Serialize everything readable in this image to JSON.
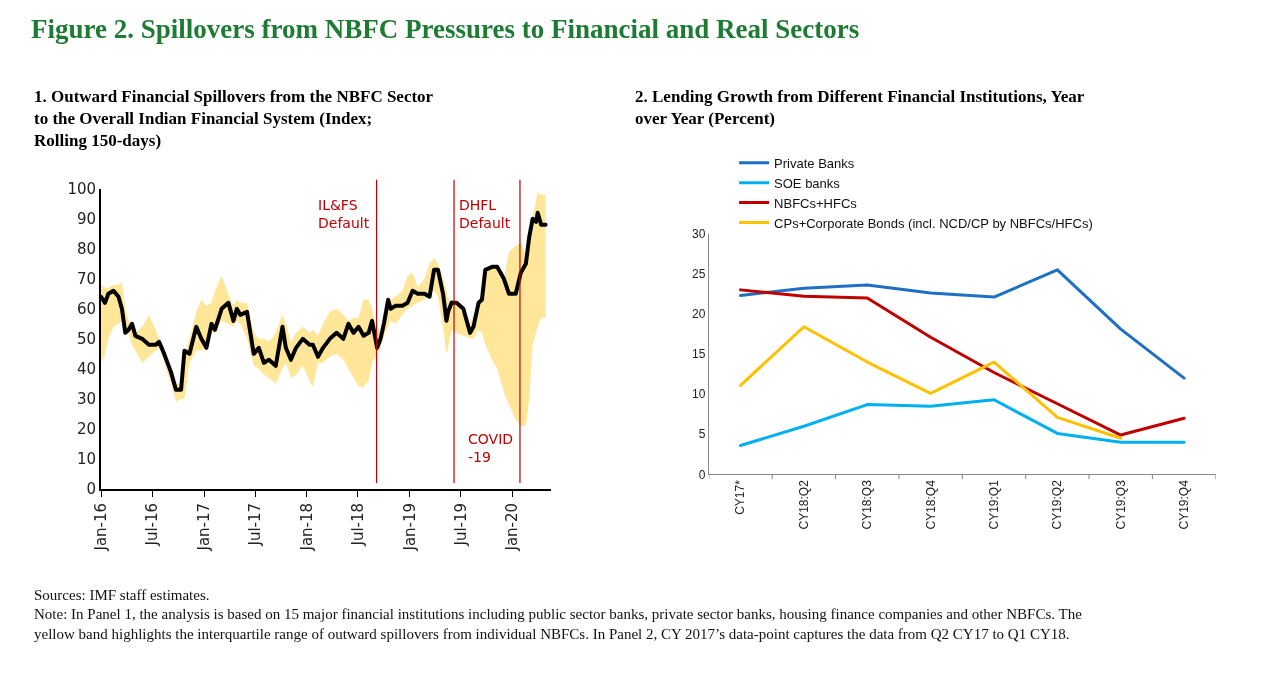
{
  "chart_data": [
    {
      "type": "line",
      "title": "1. Outward Financial Spillovers from the NBFC Sector to the Overall Indian Financial System (Index; Rolling 150-days)",
      "annotations": [
        "Figure 2. Spillovers from NBFC Pressures to Financial and Real Sectors"
      ],
      "xlim": [
        "2016-01-01",
        "2020-05-17"
      ],
      "xticks": [
        {
          "value": "2016-01-01",
          "label": "Jan-16"
        },
        {
          "value": "2016-07-01",
          "label": "Jul-16"
        },
        {
          "value": "2017-01-01",
          "label": "Jan-17"
        },
        {
          "value": "2017-07-01",
          "label": "Jul-17"
        },
        {
          "value": "2018-01-01",
          "label": "Jan-18"
        },
        {
          "value": "2018-07-01",
          "label": "Jul-18"
        },
        {
          "value": "2019-01-01",
          "label": "Jan-19"
        },
        {
          "value": "2019-07-01",
          "label": "Jul-19"
        },
        {
          "value": "2020-01-01",
          "label": "Jan-20"
        }
      ],
      "ylim": [
        0,
        100
      ],
      "yticks": [
        0,
        10,
        20,
        30,
        40,
        50,
        60,
        70,
        80,
        90,
        100
      ],
      "x": [
        "2016-01-01",
        "2016-01-15",
        "2016-01-27",
        "2016-02-14",
        "2016-03-03",
        "2016-03-15",
        "2016-03-27",
        "2016-04-08",
        "2016-04-20",
        "2016-05-02",
        "2016-05-26",
        "2016-06-19",
        "2016-07-13",
        "2016-07-25",
        "2016-08-12",
        "2016-09-05",
        "2016-09-23",
        "2016-10-11",
        "2016-10-23",
        "2016-11-10",
        "2016-12-04",
        "2016-12-22",
        "2017-01-09",
        "2017-01-27",
        "2017-02-08",
        "2017-03-04",
        "2017-03-28",
        "2017-04-15",
        "2017-04-27",
        "2017-05-09",
        "2017-06-02",
        "2017-06-26",
        "2017-07-14",
        "2017-08-01",
        "2017-08-19",
        "2017-09-12",
        "2017-10-06",
        "2017-10-18",
        "2017-11-05",
        "2017-11-23",
        "2017-12-17",
        "2018-01-10",
        "2018-01-22",
        "2018-02-09",
        "2018-02-27",
        "2018-03-23",
        "2018-04-16",
        "2018-05-10",
        "2018-05-28",
        "2018-06-15",
        "2018-07-03",
        "2018-07-21",
        "2018-08-08",
        "2018-08-20",
        "2018-09-07",
        "2018-09-19",
        "2018-10-01",
        "2018-10-16",
        "2018-10-25",
        "2018-11-12",
        "2018-12-06",
        "2018-12-24",
        "2019-01-11",
        "2019-01-29",
        "2019-02-22",
        "2019-03-12",
        "2019-03-28",
        "2019-04-11",
        "2019-04-29",
        "2019-05-11",
        "2019-05-17",
        "2019-05-29",
        "2019-06-16",
        "2019-07-10",
        "2019-08-03",
        "2019-08-15",
        "2019-09-02",
        "2019-09-14",
        "2019-09-26",
        "2019-10-20",
        "2019-11-07",
        "2019-12-01",
        "2019-12-19",
        "2020-01-12",
        "2020-01-30",
        "2020-02-17",
        "2020-02-29",
        "2020-03-12",
        "2020-03-24",
        "2020-03-30",
        "2020-04-11",
        "2020-04-27"
      ],
      "series": [
        {
          "color": "#000000",
          "values": [
            64,
            62,
            65,
            66,
            64,
            60,
            52,
            53,
            55,
            51,
            50,
            48,
            48,
            49,
            45,
            39,
            33,
            33,
            46,
            45,
            54,
            50,
            47,
            55,
            53,
            60,
            62,
            56,
            60,
            58,
            59,
            45,
            47,
            42,
            43,
            41,
            54,
            47,
            43,
            47,
            50,
            48,
            48,
            44,
            47,
            50,
            52,
            50,
            55,
            52,
            54,
            51,
            52,
            56,
            47,
            50,
            55,
            63,
            60,
            61,
            61,
            62,
            66,
            65,
            65,
            64,
            73,
            73,
            65,
            56,
            59,
            62,
            62,
            60,
            52,
            54,
            62,
            63,
            73,
            74,
            74,
            70,
            65,
            65,
            72,
            75,
            84,
            90,
            89,
            92,
            88,
            88
          ],
          "lower": [
            42,
            45,
            50,
            54,
            55,
            56,
            51,
            52,
            48,
            46,
            42,
            44,
            46,
            47,
            42,
            35,
            29,
            30,
            30,
            42,
            46,
            46,
            47,
            52,
            52,
            56,
            55,
            54,
            56,
            55,
            50,
            41,
            40,
            38,
            37,
            35,
            40,
            42,
            37,
            38,
            41,
            36,
            34,
            42,
            42,
            44,
            45,
            43,
            40,
            37,
            34,
            34,
            36,
            42,
            45,
            47,
            51,
            54,
            56,
            55,
            58,
            60,
            61,
            62,
            63,
            65,
            66,
            64,
            54,
            45,
            47,
            53,
            52,
            51,
            50,
            50,
            53,
            52,
            48,
            43,
            40,
            32,
            28,
            23,
            21,
            21,
            30,
            48,
            52,
            54,
            57,
            57
          ],
          "upper": [
            68,
            67,
            67,
            68,
            68,
            69,
            60,
            56,
            55,
            52,
            54,
            58,
            53,
            50,
            46,
            40,
            35,
            35,
            45,
            50,
            59,
            63,
            61,
            62,
            66,
            71,
            65,
            61,
            63,
            62,
            62,
            52,
            50,
            50,
            49,
            52,
            58,
            55,
            49,
            52,
            54,
            52,
            53,
            51,
            55,
            59,
            60,
            58,
            56,
            57,
            57,
            63,
            63,
            60,
            52,
            54,
            58,
            63,
            63,
            64,
            66,
            71,
            72,
            67,
            70,
            75,
            77,
            75,
            70,
            66,
            63,
            63,
            62,
            58,
            55,
            58,
            63,
            63,
            72,
            74,
            74,
            70,
            79,
            81,
            82,
            78,
            82,
            90,
            96,
            99,
            98,
            98
          ]
        }
      ],
      "ref_lines": [
        {
          "axis": "x",
          "value": "2018-09-05",
          "label": "IL&FS Default",
          "color": "#c00000"
        },
        {
          "axis": "x",
          "value": "2019-06-07",
          "label": "DHFL Default",
          "color": "#c00000"
        },
        {
          "axis": "x",
          "value": "2020-01-27",
          "label": "COVID -19",
          "color": "#c00000"
        }
      ]
    },
    {
      "type": "line",
      "title": "2. Lending Growth from Different Financial Institutions, Year over Year (Percent)",
      "annotations": [
        "Sources: IMF staff estimates.",
        "Note: In Panel 1, the analysis is based on 15 major financial institutions including public sector banks, private sector banks, housing finance companies and other NBFCs. The yellow band highlights the interquartile range of outward spillovers from individual NBFCs. In Panel 2, CY 2017’s data-point captures the data from Q2 CY17 to Q1 CY18."
      ],
      "categories": [
        "CY17*",
        "CY18:Q2",
        "CY18:Q3",
        "CY18:Q4",
        "CY19:Q1",
        "CY19:Q2",
        "CY19:Q3",
        "CY19:Q4"
      ],
      "ylim": [
        0,
        30
      ],
      "yticks": [
        0,
        5,
        10,
        15,
        20,
        25,
        30
      ],
      "legend": "top left",
      "series": [
        {
          "name": "Private Banks",
          "color": "#1f6fc5",
          "values": [
            22.3,
            23.2,
            23.6,
            22.6,
            22.1,
            25.5,
            18.1,
            12.0
          ]
        },
        {
          "name": "SOE banks",
          "color": "#00b0f0",
          "values": [
            3.6,
            6.0,
            8.7,
            8.5,
            9.3,
            5.1,
            4.0,
            4.0
          ]
        },
        {
          "name": "NBFCs+HFCs",
          "color": "#c00000",
          "values": [
            23.0,
            22.2,
            22.0,
            17.1,
            12.7,
            8.8,
            4.9,
            7.0
          ]
        },
        {
          "name": "CPs+Corporate Bonds (incl. NCD/CP by NBFCs/HFCs)",
          "color": "#ffc000",
          "values": [
            11.1,
            18.4,
            14.0,
            10.1,
            14.0,
            7.1,
            4.5,
            null
          ]
        }
      ]
    }
  ]
}
